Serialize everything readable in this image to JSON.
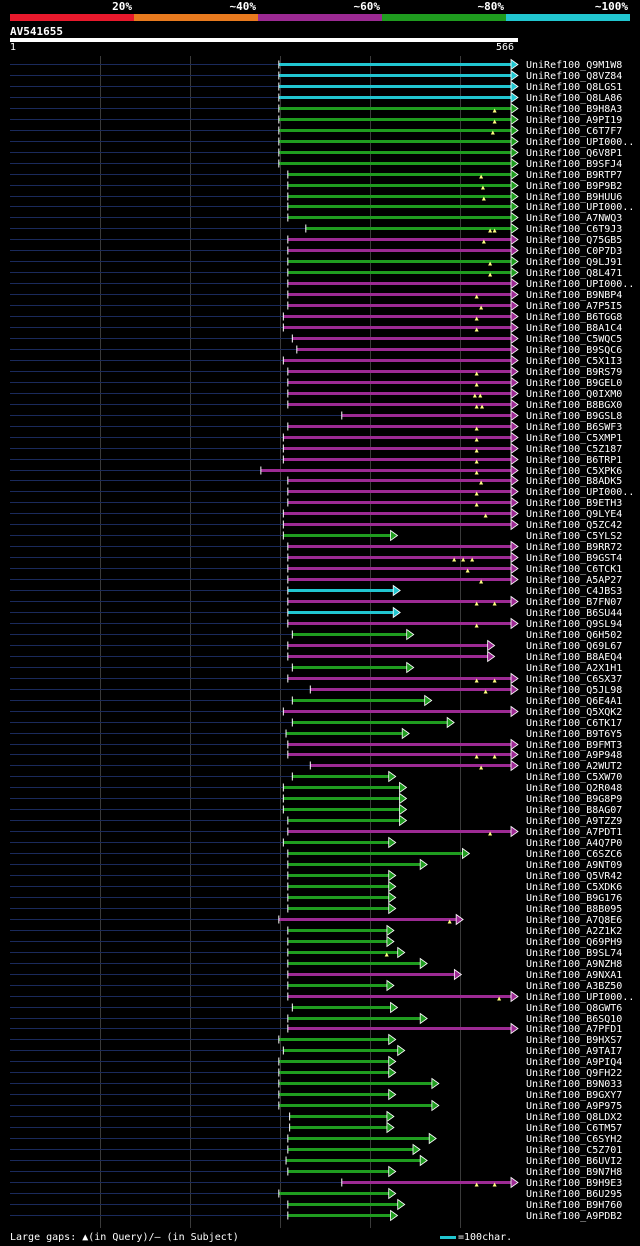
{
  "header": {
    "legend": [
      {
        "label": "20%",
        "color": "#e8192c"
      },
      {
        "label": "~40%",
        "color": "#e87a1e"
      },
      {
        "label": "~60%",
        "color": "#9c2a93"
      },
      {
        "label": "~80%",
        "color": "#1f9c1f"
      },
      {
        "label": "~100%",
        "color": "#21c6d0"
      }
    ],
    "query_name": "AV541655",
    "ruler_start": "1",
    "ruler_end": "566"
  },
  "footer": {
    "gaps_text": "Large gaps: ▲(in Query)/— (in Subject)",
    "scale_text": "=100char."
  },
  "chart_data": {
    "type": "alignment",
    "query_length": 566,
    "colors": {
      "cyan": "#21c6d0",
      "green": "#1f9c1f",
      "magenta": "#9c2a93"
    },
    "hits": [
      {
        "name": "UniRef100_Q9M1W8",
        "start": 300,
        "end": 566,
        "color": "cyan",
        "gaps": []
      },
      {
        "name": "UniRef100_Q8VZ84",
        "start": 300,
        "end": 566,
        "color": "cyan",
        "gaps": []
      },
      {
        "name": "UniRef100_Q8LGS1",
        "start": 300,
        "end": 566,
        "color": "cyan",
        "gaps": []
      },
      {
        "name": "UniRef100_Q8LA86",
        "start": 300,
        "end": 566,
        "color": "cyan",
        "gaps": []
      },
      {
        "name": "UniRef100_B9H8A3",
        "start": 300,
        "end": 566,
        "color": "green",
        "gaps": [
          540
        ]
      },
      {
        "name": "UniRef100_A9PI19",
        "start": 300,
        "end": 566,
        "color": "green",
        "gaps": [
          540
        ]
      },
      {
        "name": "UniRef100_C6T7F7",
        "start": 300,
        "end": 566,
        "color": "green",
        "gaps": [
          538
        ]
      },
      {
        "name": "UniRef100_UPI000..",
        "start": 300,
        "end": 566,
        "color": "green",
        "gaps": []
      },
      {
        "name": "UniRef100_Q6V8P1",
        "start": 300,
        "end": 566,
        "color": "green",
        "gaps": []
      },
      {
        "name": "UniRef100_B9SFJ4",
        "start": 300,
        "end": 566,
        "color": "green",
        "gaps": []
      },
      {
        "name": "UniRef100_B9RTP7",
        "start": 310,
        "end": 566,
        "color": "green",
        "gaps": [
          525
        ]
      },
      {
        "name": "UniRef100_B9P9B2",
        "start": 310,
        "end": 566,
        "color": "green",
        "gaps": [
          527
        ]
      },
      {
        "name": "UniRef100_B9HUU6",
        "start": 310,
        "end": 566,
        "color": "green",
        "gaps": [
          528
        ]
      },
      {
        "name": "UniRef100_UPI000..",
        "start": 310,
        "end": 566,
        "color": "green",
        "gaps": []
      },
      {
        "name": "UniRef100_A7NWQ3",
        "start": 310,
        "end": 566,
        "color": "green",
        "gaps": []
      },
      {
        "name": "UniRef100_C6T9J3",
        "start": 330,
        "end": 566,
        "color": "green",
        "gaps": [
          535,
          540
        ]
      },
      {
        "name": "UniRef100_Q75GB5",
        "start": 310,
        "end": 566,
        "color": "magenta",
        "gaps": [
          528
        ]
      },
      {
        "name": "UniRef100_C0P7D3",
        "start": 310,
        "end": 566,
        "color": "magenta",
        "gaps": []
      },
      {
        "name": "UniRef100_Q9LJ91",
        "start": 310,
        "end": 566,
        "color": "green",
        "gaps": [
          535
        ]
      },
      {
        "name": "UniRef100_Q8L471",
        "start": 310,
        "end": 566,
        "color": "green",
        "gaps": [
          535
        ]
      },
      {
        "name": "UniRef100_UPI000..",
        "start": 310,
        "end": 566,
        "color": "magenta",
        "gaps": []
      },
      {
        "name": "UniRef100_B9NBP4",
        "start": 310,
        "end": 566,
        "color": "magenta",
        "gaps": [
          520
        ]
      },
      {
        "name": "UniRef100_A7P5I5",
        "start": 310,
        "end": 566,
        "color": "magenta",
        "gaps": [
          525
        ]
      },
      {
        "name": "UniRef100_B6TGG8",
        "start": 305,
        "end": 566,
        "color": "magenta",
        "gaps": [
          520
        ]
      },
      {
        "name": "UniRef100_B8A1C4",
        "start": 305,
        "end": 566,
        "color": "magenta",
        "gaps": [
          520
        ]
      },
      {
        "name": "UniRef100_C5WQC5",
        "start": 315,
        "end": 566,
        "color": "magenta",
        "gaps": []
      },
      {
        "name": "UniRef100_B9SQC6",
        "start": 320,
        "end": 566,
        "color": "magenta",
        "gaps": []
      },
      {
        "name": "UniRef100_C5X1I3",
        "start": 305,
        "end": 566,
        "color": "magenta",
        "gaps": []
      },
      {
        "name": "UniRef100_B9RS79",
        "start": 310,
        "end": 566,
        "color": "magenta",
        "gaps": [
          520
        ]
      },
      {
        "name": "UniRef100_B9GEL0",
        "start": 310,
        "end": 566,
        "color": "magenta",
        "gaps": [
          520
        ]
      },
      {
        "name": "UniRef100_Q0IXM0",
        "start": 310,
        "end": 566,
        "color": "magenta",
        "gaps": [
          518,
          524
        ]
      },
      {
        "name": "UniRef100_B8BGX0",
        "start": 310,
        "end": 566,
        "color": "magenta",
        "gaps": [
          520,
          526
        ]
      },
      {
        "name": "UniRef100_B9GSL8",
        "start": 370,
        "end": 566,
        "color": "magenta",
        "gaps": []
      },
      {
        "name": "UniRef100_B6SWF3",
        "start": 310,
        "end": 566,
        "color": "magenta",
        "gaps": [
          520
        ]
      },
      {
        "name": "UniRef100_C5XMP1",
        "start": 305,
        "end": 566,
        "color": "magenta",
        "gaps": [
          520
        ]
      },
      {
        "name": "UniRef100_C5Z187",
        "start": 305,
        "end": 566,
        "color": "magenta",
        "gaps": [
          520
        ]
      },
      {
        "name": "UniRef100_B6TRP1",
        "start": 305,
        "end": 566,
        "color": "magenta",
        "gaps": [
          520
        ]
      },
      {
        "name": "UniRef100_C5XPK6",
        "start": 280,
        "end": 566,
        "color": "magenta",
        "gaps": [
          520
        ]
      },
      {
        "name": "UniRef100_B8ADK5",
        "start": 310,
        "end": 566,
        "color": "magenta",
        "gaps": [
          525
        ]
      },
      {
        "name": "UniRef100_UPI000..",
        "start": 310,
        "end": 566,
        "color": "magenta",
        "gaps": [
          520
        ]
      },
      {
        "name": "UniRef100_B9ETH3",
        "start": 310,
        "end": 566,
        "color": "magenta",
        "gaps": [
          520
        ]
      },
      {
        "name": "UniRef100_Q9LYE4",
        "start": 305,
        "end": 566,
        "color": "magenta",
        "gaps": [
          530
        ]
      },
      {
        "name": "UniRef100_Q5ZC42",
        "start": 305,
        "end": 566,
        "color": "magenta",
        "gaps": []
      },
      {
        "name": "UniRef100_C5YLS2",
        "start": 305,
        "end": 432,
        "color": "green",
        "gaps": []
      },
      {
        "name": "UniRef100_B9RR72",
        "start": 310,
        "end": 566,
        "color": "magenta",
        "gaps": []
      },
      {
        "name": "UniRef100_B9GST4",
        "start": 310,
        "end": 566,
        "color": "magenta",
        "gaps": [
          495,
          505,
          515
        ]
      },
      {
        "name": "UniRef100_C6TCK1",
        "start": 310,
        "end": 566,
        "color": "magenta",
        "gaps": [
          510
        ]
      },
      {
        "name": "UniRef100_A5AP27",
        "start": 310,
        "end": 566,
        "color": "magenta",
        "gaps": [
          525
        ]
      },
      {
        "name": "UniRef100_C4JBS3",
        "start": 310,
        "end": 435,
        "color": "cyan",
        "gaps": []
      },
      {
        "name": "UniRef100_B7FN07",
        "start": 310,
        "end": 566,
        "color": "magenta",
        "gaps": [
          520,
          540
        ]
      },
      {
        "name": "UniRef100_B6SU44",
        "start": 310,
        "end": 435,
        "color": "cyan",
        "gaps": []
      },
      {
        "name": "UniRef100_Q9SL94",
        "start": 310,
        "end": 566,
        "color": "magenta",
        "gaps": [
          520
        ]
      },
      {
        "name": "UniRef100_Q6H502",
        "start": 315,
        "end": 450,
        "color": "green",
        "gaps": []
      },
      {
        "name": "UniRef100_Q69L67",
        "start": 310,
        "end": 540,
        "color": "magenta",
        "gaps": []
      },
      {
        "name": "UniRef100_B8AEQ4",
        "start": 310,
        "end": 540,
        "color": "magenta",
        "gaps": []
      },
      {
        "name": "UniRef100_A2X1H1",
        "start": 315,
        "end": 450,
        "color": "green",
        "gaps": []
      },
      {
        "name": "UniRef100_C6SX37",
        "start": 310,
        "end": 566,
        "color": "magenta",
        "gaps": [
          520,
          540
        ]
      },
      {
        "name": "UniRef100_Q5JL98",
        "start": 335,
        "end": 566,
        "color": "magenta",
        "gaps": [
          530
        ]
      },
      {
        "name": "UniRef100_Q6E4A1",
        "start": 315,
        "end": 470,
        "color": "green",
        "gaps": []
      },
      {
        "name": "UniRef100_Q5XQK2",
        "start": 305,
        "end": 566,
        "color": "magenta",
        "gaps": []
      },
      {
        "name": "UniRef100_C6TK17",
        "start": 315,
        "end": 495,
        "color": "green",
        "gaps": []
      },
      {
        "name": "UniRef100_B9T6Y5",
        "start": 308,
        "end": 445,
        "color": "green",
        "gaps": []
      },
      {
        "name": "UniRef100_B9FMT3",
        "start": 310,
        "end": 566,
        "color": "magenta",
        "gaps": []
      },
      {
        "name": "UniRef100_A9P948",
        "start": 310,
        "end": 566,
        "color": "magenta",
        "gaps": [
          520,
          540
        ]
      },
      {
        "name": "UniRef100_A2WUT2",
        "start": 335,
        "end": 566,
        "color": "magenta",
        "gaps": [
          525
        ]
      },
      {
        "name": "UniRef100_C5XW70",
        "start": 315,
        "end": 430,
        "color": "green",
        "gaps": []
      },
      {
        "name": "UniRef100_Q2R048",
        "start": 305,
        "end": 442,
        "color": "green",
        "gaps": []
      },
      {
        "name": "UniRef100_B9G8P9",
        "start": 305,
        "end": 442,
        "color": "green",
        "gaps": []
      },
      {
        "name": "UniRef100_B8AG07",
        "start": 305,
        "end": 442,
        "color": "green",
        "gaps": []
      },
      {
        "name": "UniRef100_A9TZZ9",
        "start": 310,
        "end": 442,
        "color": "green",
        "gaps": []
      },
      {
        "name": "UniRef100_A7PDT1",
        "start": 310,
        "end": 566,
        "color": "magenta",
        "gaps": [
          535
        ]
      },
      {
        "name": "UniRef100_A4Q7P0",
        "start": 305,
        "end": 430,
        "color": "green",
        "gaps": []
      },
      {
        "name": "UniRef100_C6SZC6",
        "start": 310,
        "end": 512,
        "color": "green",
        "gaps": []
      },
      {
        "name": "UniRef100_A9NT09",
        "start": 310,
        "end": 465,
        "color": "green",
        "gaps": []
      },
      {
        "name": "UniRef100_Q5VR42",
        "start": 310,
        "end": 430,
        "color": "green",
        "gaps": []
      },
      {
        "name": "UniRef100_C5XDK6",
        "start": 310,
        "end": 430,
        "color": "green",
        "gaps": []
      },
      {
        "name": "UniRef100_B9G176",
        "start": 310,
        "end": 430,
        "color": "green",
        "gaps": []
      },
      {
        "name": "UniRef100_B8B095",
        "start": 310,
        "end": 430,
        "color": "green",
        "gaps": []
      },
      {
        "name": "UniRef100_A7Q8E6",
        "start": 300,
        "end": 505,
        "color": "magenta",
        "gaps": [
          490
        ]
      },
      {
        "name": "UniRef100_A2Z1K2",
        "start": 310,
        "end": 428,
        "color": "green",
        "gaps": []
      },
      {
        "name": "UniRef100_Q69PH9",
        "start": 310,
        "end": 428,
        "color": "green",
        "gaps": []
      },
      {
        "name": "UniRef100_B9SL74",
        "start": 310,
        "end": 440,
        "color": "green",
        "gaps": [
          420
        ]
      },
      {
        "name": "UniRef100_A9NZH8",
        "start": 310,
        "end": 465,
        "color": "green",
        "gaps": []
      },
      {
        "name": "UniRef100_A9NXA1",
        "start": 310,
        "end": 503,
        "color": "magenta",
        "gaps": []
      },
      {
        "name": "UniRef100_A3BZ50",
        "start": 310,
        "end": 428,
        "color": "green",
        "gaps": []
      },
      {
        "name": "UniRef100_UPI000..",
        "start": 310,
        "end": 566,
        "color": "magenta",
        "gaps": [
          545
        ]
      },
      {
        "name": "UniRef100_Q8GWT6",
        "start": 315,
        "end": 432,
        "color": "green",
        "gaps": []
      },
      {
        "name": "UniRef100_B6SQ10",
        "start": 310,
        "end": 465,
        "color": "green",
        "gaps": []
      },
      {
        "name": "UniRef100_A7PFD1",
        "start": 310,
        "end": 566,
        "color": "magenta",
        "gaps": []
      },
      {
        "name": "UniRef100_B9HXS7",
        "start": 300,
        "end": 430,
        "color": "green",
        "gaps": []
      },
      {
        "name": "UniRef100_A9TAI7",
        "start": 305,
        "end": 440,
        "color": "green",
        "gaps": []
      },
      {
        "name": "UniRef100_A9PIQ4",
        "start": 300,
        "end": 430,
        "color": "green",
        "gaps": []
      },
      {
        "name": "UniRef100_Q9FH22",
        "start": 300,
        "end": 430,
        "color": "green",
        "gaps": []
      },
      {
        "name": "UniRef100_B9N033",
        "start": 300,
        "end": 478,
        "color": "green",
        "gaps": []
      },
      {
        "name": "UniRef100_B9GXY7",
        "start": 300,
        "end": 430,
        "color": "green",
        "gaps": []
      },
      {
        "name": "UniRef100_A9P975",
        "start": 300,
        "end": 478,
        "color": "green",
        "gaps": []
      },
      {
        "name": "UniRef100_Q8LDX2",
        "start": 312,
        "end": 428,
        "color": "green",
        "gaps": []
      },
      {
        "name": "UniRef100_C6TM57",
        "start": 312,
        "end": 428,
        "color": "green",
        "gaps": []
      },
      {
        "name": "UniRef100_C6SYH2",
        "start": 310,
        "end": 475,
        "color": "green",
        "gaps": []
      },
      {
        "name": "UniRef100_C5Z701",
        "start": 310,
        "end": 457,
        "color": "green",
        "gaps": []
      },
      {
        "name": "UniRef100_B6UVI2",
        "start": 308,
        "end": 465,
        "color": "green",
        "gaps": []
      },
      {
        "name": "UniRef100_B9N7H8",
        "start": 310,
        "end": 430,
        "color": "green",
        "gaps": []
      },
      {
        "name": "UniRef100_B9H9E3",
        "start": 370,
        "end": 566,
        "color": "magenta",
        "gaps": [
          520,
          540
        ]
      },
      {
        "name": "UniRef100_B6U295",
        "start": 300,
        "end": 430,
        "color": "green",
        "gaps": []
      },
      {
        "name": "UniRef100_B9H760",
        "start": 310,
        "end": 440,
        "color": "green",
        "gaps": []
      },
      {
        "name": "UniRef100_A9PDB2",
        "start": 310,
        "end": 432,
        "color": "green",
        "gaps": []
      }
    ]
  }
}
